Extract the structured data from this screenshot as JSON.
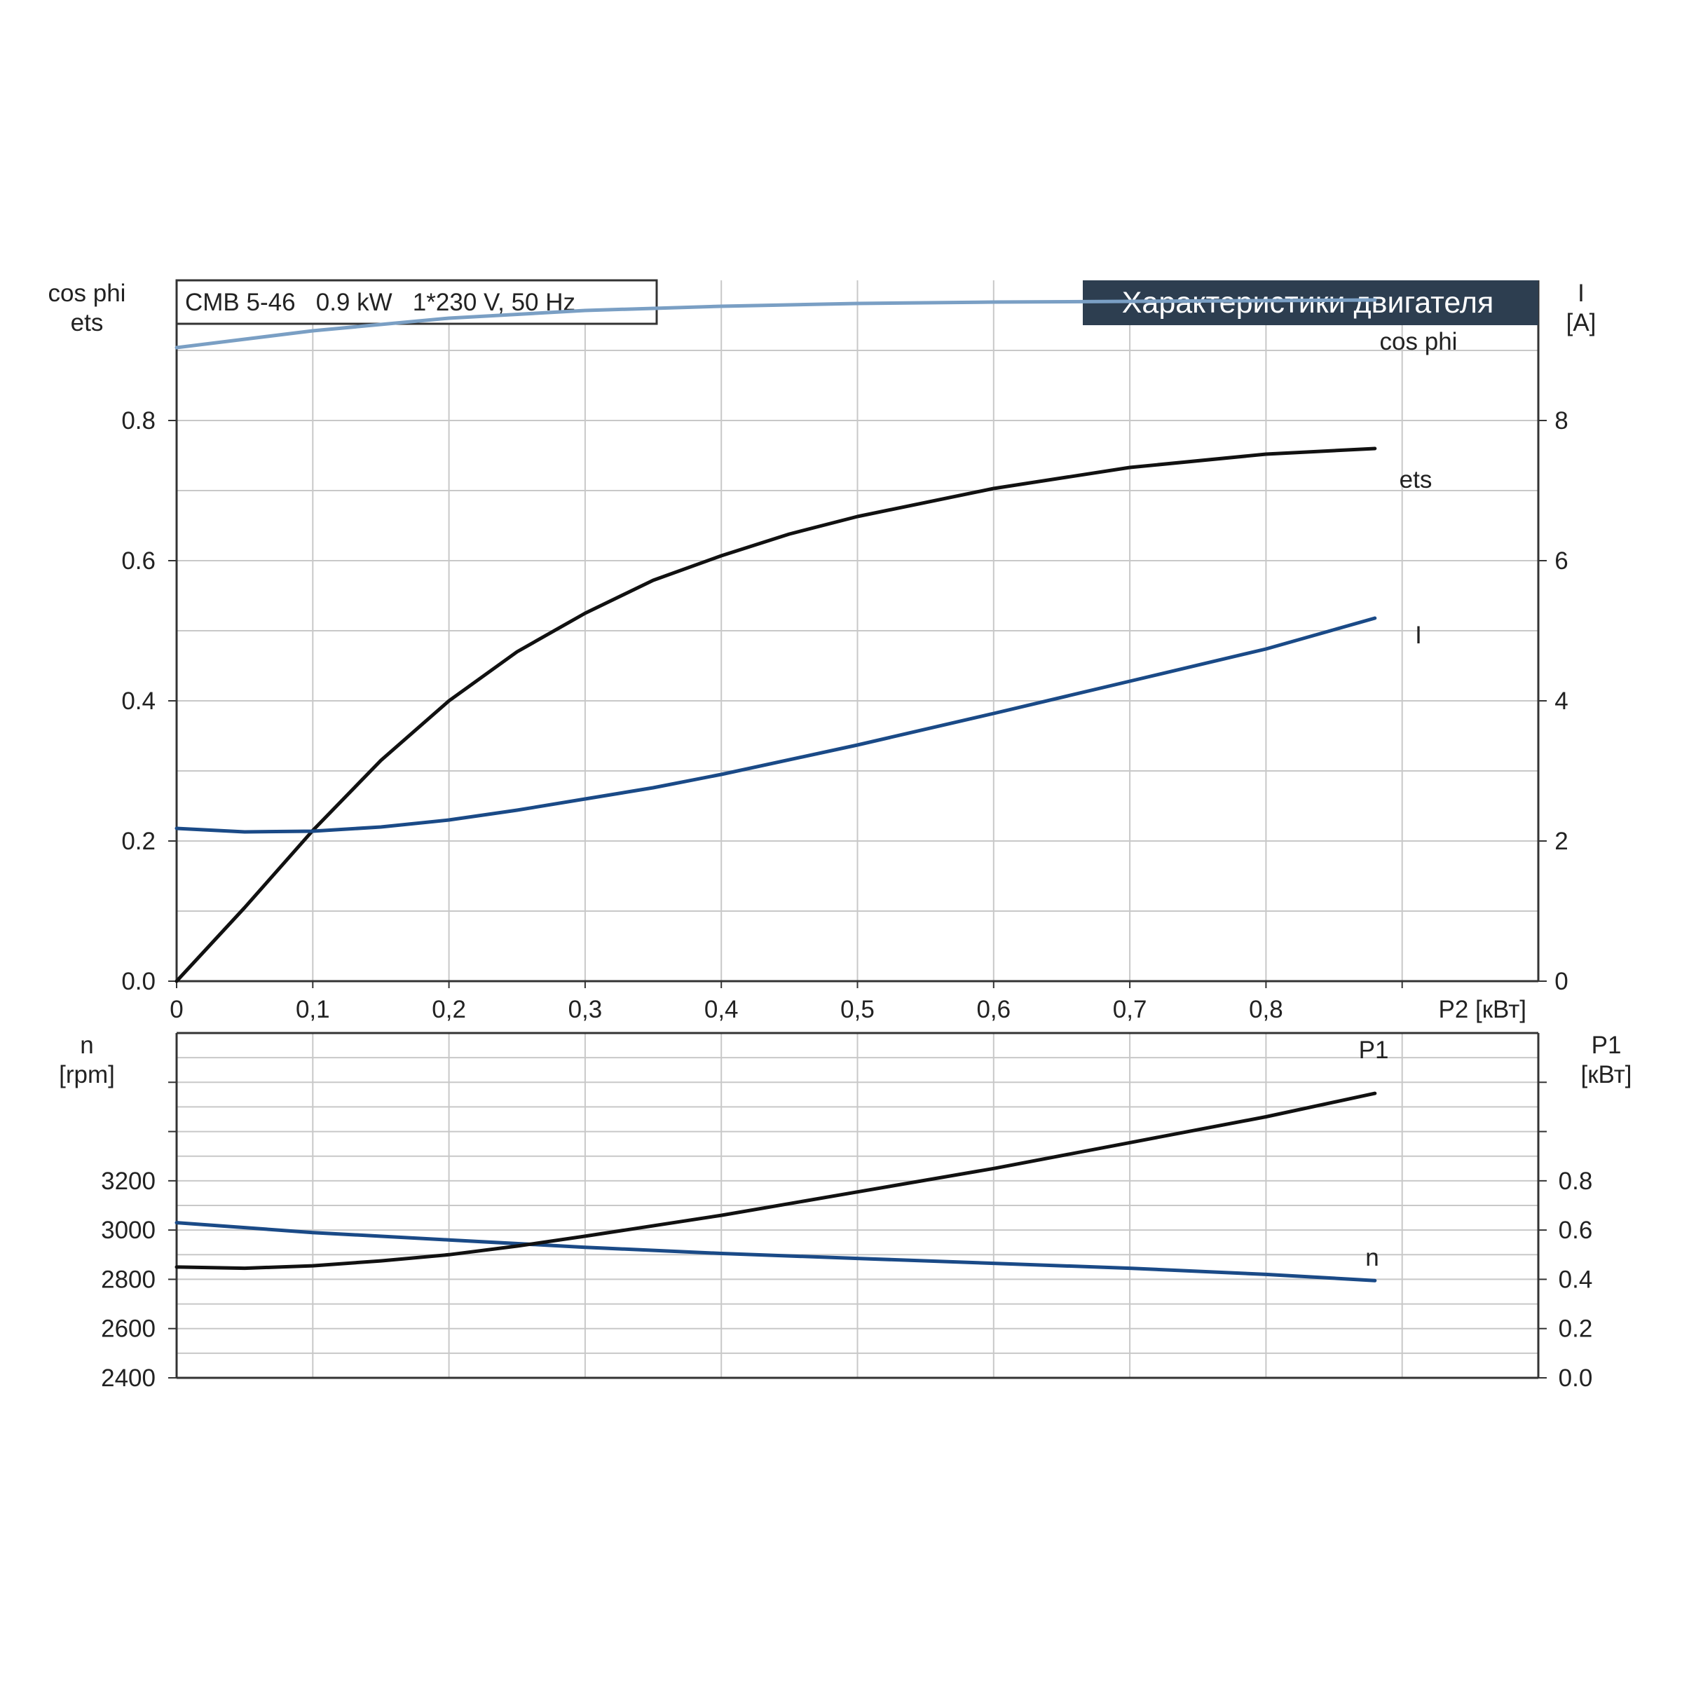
{
  "colors": {
    "cos_phi": "#7a9fc4",
    "efficiency": "#111111",
    "current": "#1a4a87",
    "speed": "#1a4a87",
    "p1": "#111111",
    "title_bg": "#2d3e50",
    "title_fg": "#ffffff",
    "grid": "#c8c8c8"
  },
  "chart_data": [
    {
      "type": "line",
      "panel": "top",
      "title": "Характеристики двигателя",
      "subtitle": "CMB 5-46   0.9 kW   1*230 V, 50 Hz",
      "xlabel": "P2 [кВт]",
      "ylabel_left": [
        "cos phi",
        "ets"
      ],
      "ylabel_right": [
        "I",
        "[A]"
      ],
      "xlim": [
        0,
        1.0
      ],
      "ylim_left": [
        0,
        1.0
      ],
      "ylim_right": [
        0,
        10
      ],
      "x_ticks": [
        0,
        0.1,
        0.2,
        0.3,
        0.4,
        0.5,
        0.6,
        0.7,
        0.8
      ],
      "x_tick_labels": [
        "0",
        "0,1",
        "0,2",
        "0,3",
        "0,4",
        "0,5",
        "0,6",
        "0,7",
        "0,8"
      ],
      "y_ticks_left": [
        0,
        0.2,
        0.4,
        0.6,
        0.8
      ],
      "y_tick_labels_left": [
        "0.0",
        "0.2",
        "0.4",
        "0.6",
        "0.8"
      ],
      "y_ticks_right": [
        0,
        2,
        4,
        6,
        8
      ],
      "y_tick_labels_right": [
        "0",
        "2",
        "4",
        "6",
        "8"
      ],
      "grid": true,
      "series": [
        {
          "name": "cos phi",
          "axis": "left",
          "x": [
            0,
            0.1,
            0.2,
            0.3,
            0.4,
            0.5,
            0.6,
            0.7,
            0.8,
            0.88
          ],
          "y": [
            0.904,
            0.928,
            0.946,
            0.957,
            0.963,
            0.967,
            0.969,
            0.97,
            0.971,
            0.972
          ]
        },
        {
          "name": "ets",
          "axis": "left",
          "x": [
            0,
            0.05,
            0.1,
            0.15,
            0.2,
            0.25,
            0.3,
            0.35,
            0.4,
            0.45,
            0.5,
            0.6,
            0.7,
            0.8,
            0.88
          ],
          "y": [
            0.0,
            0.105,
            0.215,
            0.315,
            0.4,
            0.47,
            0.525,
            0.572,
            0.607,
            0.638,
            0.663,
            0.703,
            0.733,
            0.752,
            0.76
          ]
        },
        {
          "name": "I",
          "axis": "right",
          "x": [
            0,
            0.05,
            0.1,
            0.15,
            0.2,
            0.25,
            0.3,
            0.35,
            0.4,
            0.5,
            0.6,
            0.7,
            0.8,
            0.88
          ],
          "y": [
            2.18,
            2.13,
            2.14,
            2.2,
            2.3,
            2.44,
            2.6,
            2.76,
            2.95,
            3.37,
            3.82,
            4.28,
            4.74,
            5.18
          ]
        }
      ]
    },
    {
      "type": "line",
      "panel": "bottom",
      "ylabel_left": [
        "n",
        "[rpm]"
      ],
      "ylabel_right": [
        "P1",
        "[кВт]"
      ],
      "xlim": [
        0,
        1.0
      ],
      "ylim_left": [
        2400,
        3800
      ],
      "ylim_right": [
        0.0,
        1.4
      ],
      "y_ticks_left": [
        2400,
        2600,
        2800,
        3000,
        3200
      ],
      "y_tick_labels_left": [
        "2400",
        "2600",
        "2800",
        "3000",
        "3200"
      ],
      "y_ticks_right": [
        0.0,
        0.2,
        0.4,
        0.6,
        0.8
      ],
      "y_tick_labels_right": [
        "0.0",
        "0.2",
        "0.4",
        "0.6",
        "0.8"
      ],
      "grid": true,
      "series": [
        {
          "name": "n",
          "axis": "left",
          "x": [
            0,
            0.1,
            0.2,
            0.3,
            0.4,
            0.5,
            0.6,
            0.7,
            0.8,
            0.88
          ],
          "y": [
            3030,
            2990,
            2960,
            2930,
            2905,
            2885,
            2865,
            2845,
            2820,
            2795
          ]
        },
        {
          "name": "P1",
          "axis": "right",
          "x": [
            0,
            0.05,
            0.1,
            0.15,
            0.2,
            0.25,
            0.3,
            0.4,
            0.5,
            0.6,
            0.7,
            0.8,
            0.88
          ],
          "y": [
            0.45,
            0.445,
            0.455,
            0.475,
            0.5,
            0.535,
            0.575,
            0.66,
            0.755,
            0.85,
            0.955,
            1.06,
            1.155
          ]
        }
      ]
    }
  ]
}
